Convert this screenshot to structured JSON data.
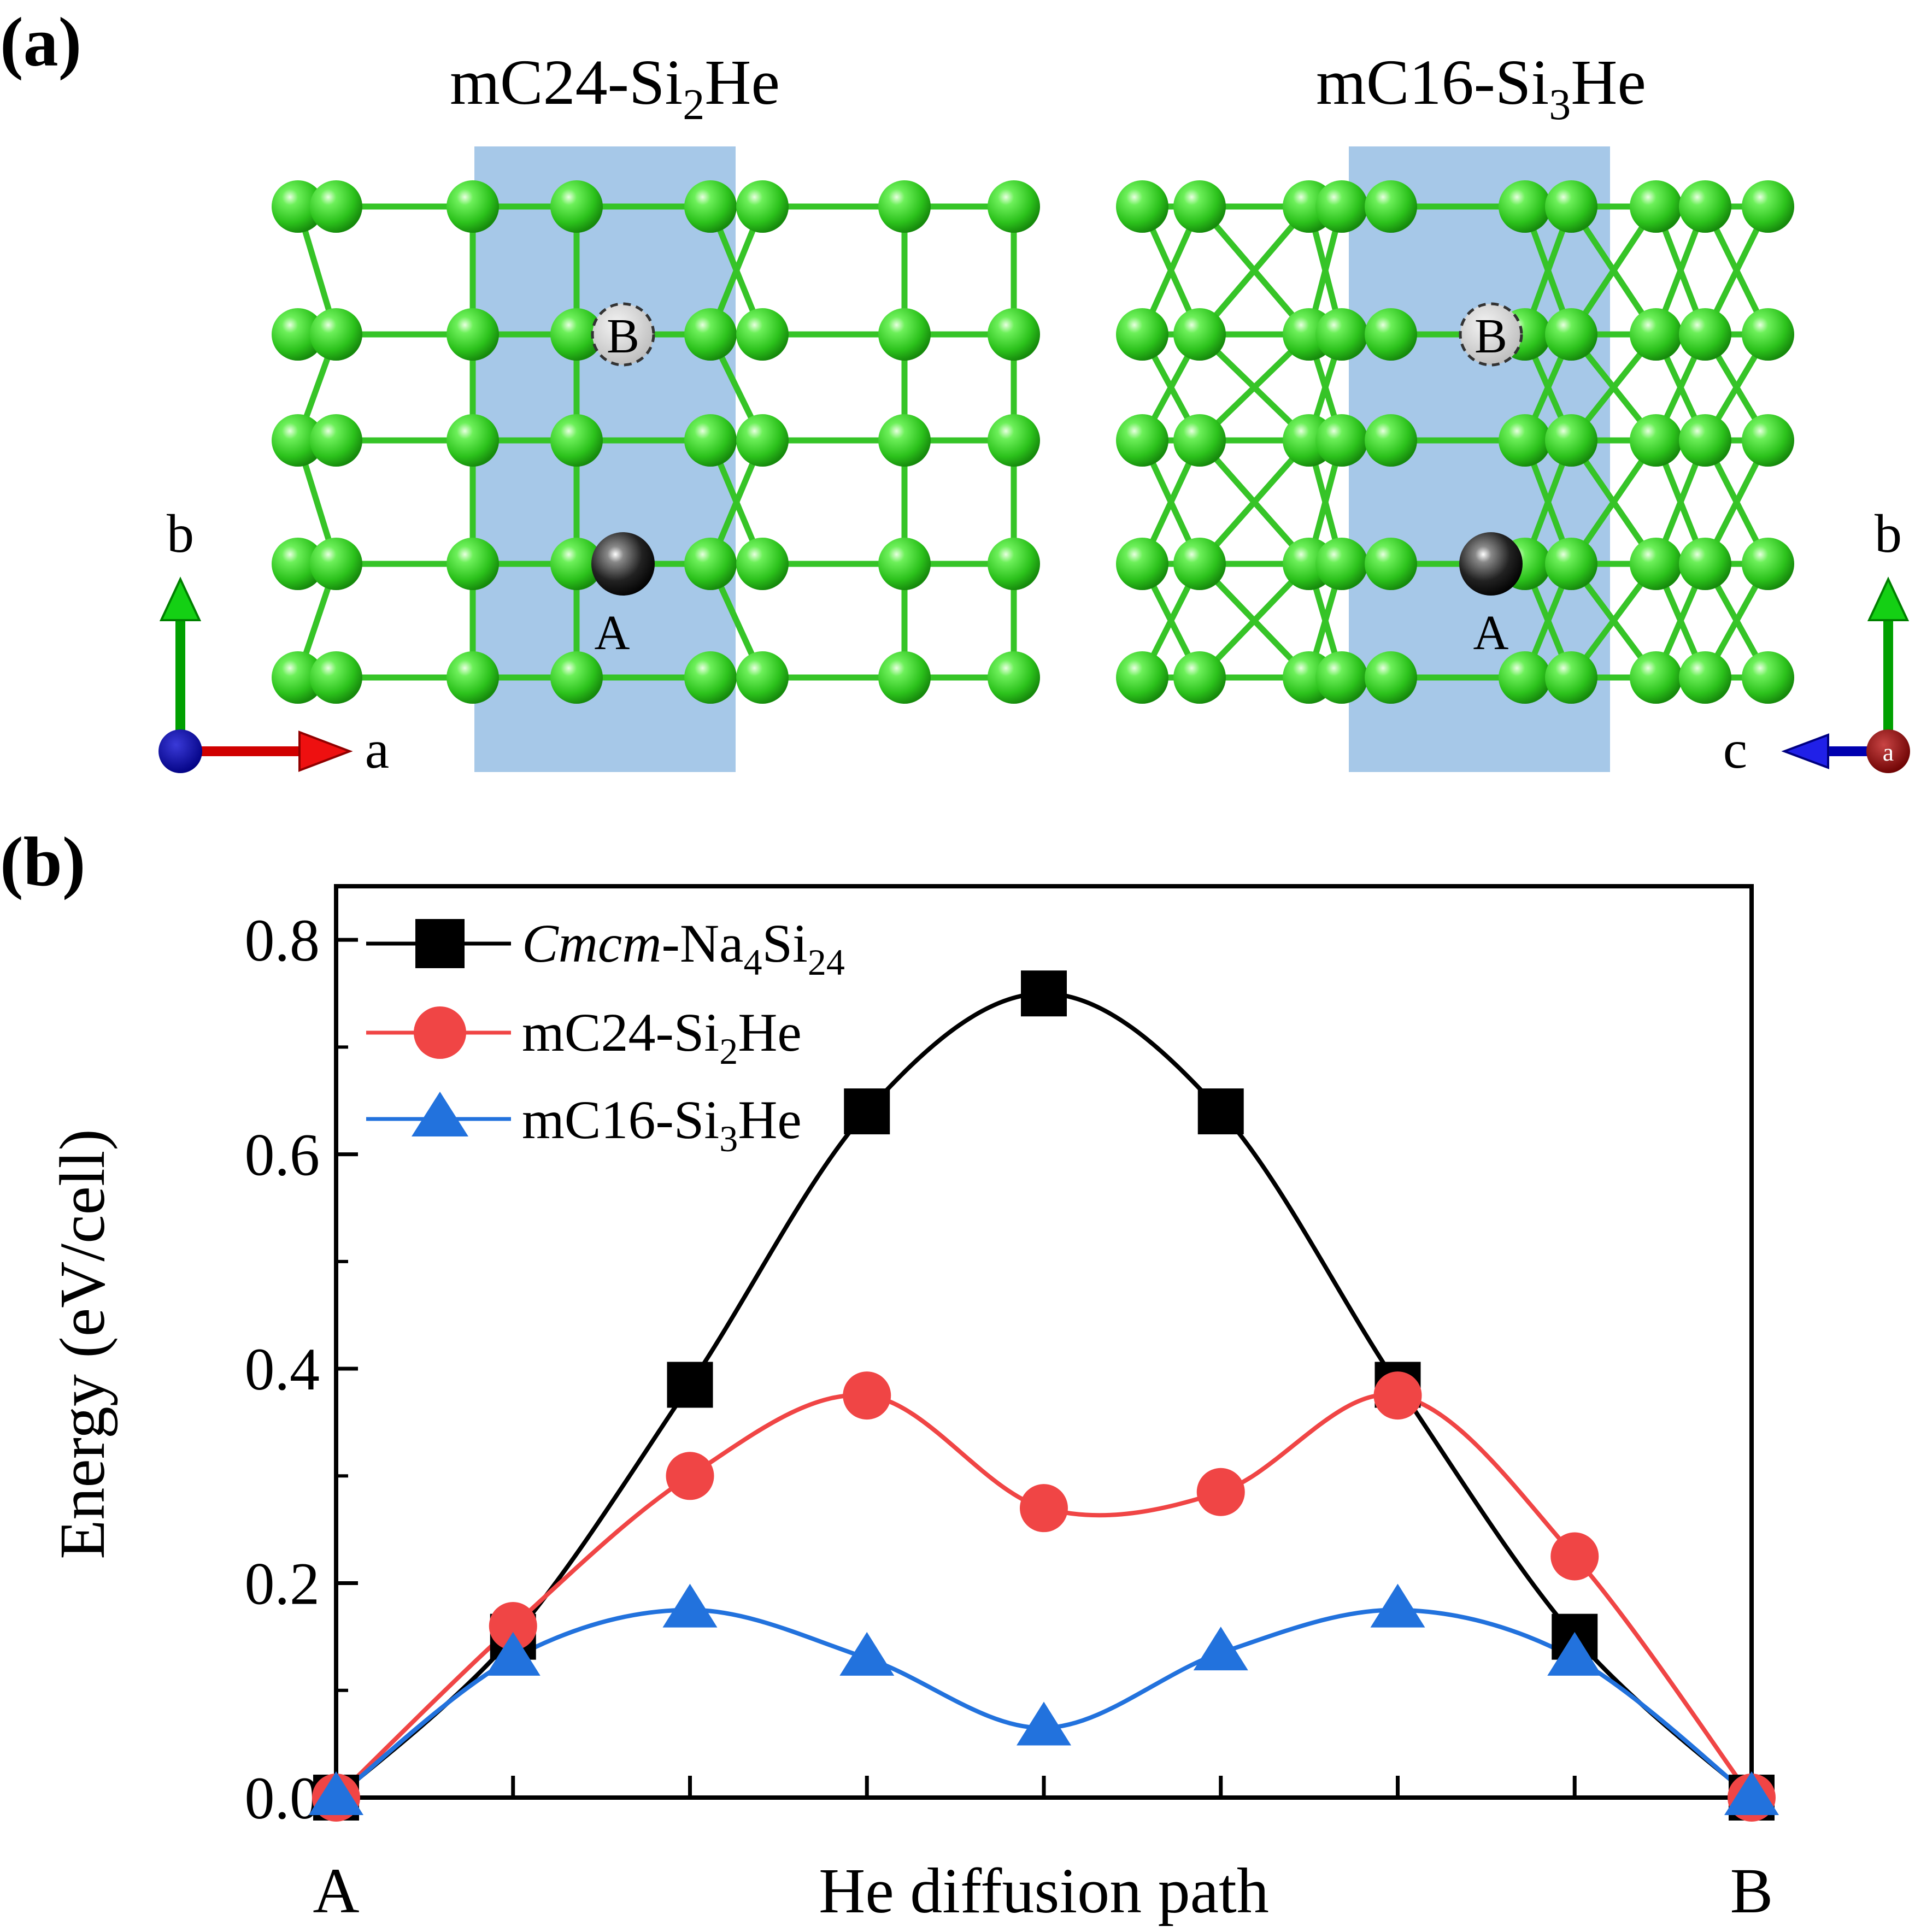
{
  "panel_a": {
    "label": "(a)",
    "left": {
      "title_prefix": "mC24-Si",
      "title_sub": "2",
      "title_suffix": "He",
      "site_a": "A",
      "site_b": "B",
      "axis_up": "b",
      "axis_right": "a"
    },
    "right": {
      "title_prefix": "mC16-Si",
      "title_sub": "3",
      "title_suffix": "He",
      "site_a": "A",
      "site_b": "B",
      "axis_up": "b",
      "axis_left": "c",
      "axis_dot": "a"
    },
    "colors": {
      "si_atom": "#3ccf2a",
      "si_bond": "#36c427",
      "he_atom": "#111111",
      "diffusion_region": "#a6c8e8"
    }
  },
  "panel_b": {
    "label": "(b)"
  },
  "chart_data": {
    "type": "line",
    "xlabel": "He diffusion path",
    "ylabel": "Energy (eV/cell)",
    "x_tick_labels": [
      "A",
      "B"
    ],
    "x_steps": [
      0,
      1,
      2,
      3,
      4,
      5,
      6,
      7,
      8
    ],
    "ylim": [
      0,
      0.85
    ],
    "yticks": [
      "0.0",
      "0.2",
      "0.4",
      "0.6",
      "0.8"
    ],
    "ytick_values": [
      0,
      0.2,
      0.4,
      0.6,
      0.8
    ],
    "legend_position": "top-left",
    "series": [
      {
        "name_prefix": "Cmcm",
        "name_middle": "-Na",
        "name_sub1": "4",
        "name_mid2": "Si",
        "name_sub2": "24",
        "marker": "square",
        "color": "#000000",
        "values": [
          0.0,
          0.15,
          0.385,
          0.64,
          0.75,
          0.64,
          0.385,
          0.15,
          0.0
        ]
      },
      {
        "name_prefix": "mC24-Si",
        "name_sub": "2",
        "name_suffix": "He",
        "marker": "circle",
        "color": "#f04545",
        "values": [
          0.0,
          0.16,
          0.3,
          0.375,
          0.27,
          0.285,
          0.375,
          0.225,
          0.0
        ]
      },
      {
        "name_prefix": "mC16-Si",
        "name_sub": "3",
        "name_suffix": "He",
        "marker": "triangle",
        "color": "#2272dd",
        "values": [
          0.0,
          0.13,
          0.175,
          0.13,
          0.065,
          0.135,
          0.175,
          0.13,
          0.0
        ]
      }
    ]
  }
}
